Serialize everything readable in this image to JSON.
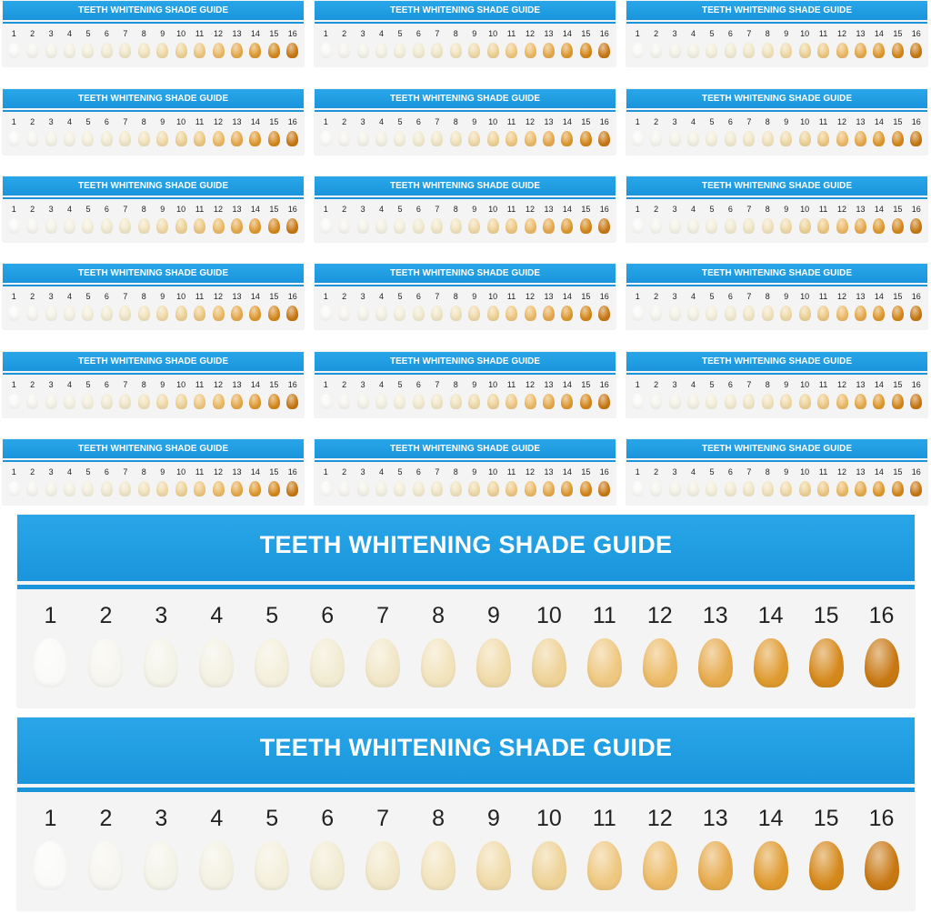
{
  "title": "TEETH WHITENING SHADE GUIDE",
  "shades": [
    {
      "number": "1",
      "color": "#fafaf8"
    },
    {
      "number": "2",
      "color": "#f6f5ef"
    },
    {
      "number": "3",
      "color": "#f4f3e8"
    },
    {
      "number": "4",
      "color": "#f3f1e2"
    },
    {
      "number": "5",
      "color": "#f3efdb"
    },
    {
      "number": "6",
      "color": "#f1ebd1"
    },
    {
      "number": "7",
      "color": "#f1e7c7"
    },
    {
      "number": "8",
      "color": "#f1e3bc"
    },
    {
      "number": "9",
      "color": "#f0daa8"
    },
    {
      "number": "10",
      "color": "#eed296"
    },
    {
      "number": "11",
      "color": "#eec881"
    },
    {
      "number": "12",
      "color": "#ecba66"
    },
    {
      "number": "13",
      "color": "#e6aa4c"
    },
    {
      "number": "14",
      "color": "#df9a2f"
    },
    {
      "number": "15",
      "color": "#d5881a"
    },
    {
      "number": "16",
      "color": "#c87813"
    }
  ],
  "colors": {
    "band": "#1a95dc",
    "card_background": "#f4f4f4",
    "number_text": "#222222"
  },
  "small_card_count": 18,
  "large_card_count": 2
}
